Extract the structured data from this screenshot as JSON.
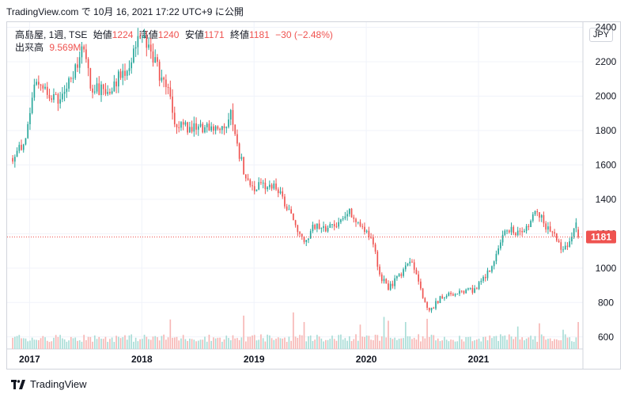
{
  "header": {
    "text": "TradingView.com で 10月 16, 2021 17:22 UTC+9 に公開"
  },
  "legend": {
    "symbol": "高島屋, 1週, TSE",
    "open_label": "始値",
    "open_value": "1224",
    "high_label": "高値",
    "high_value": "1240",
    "low_label": "安値",
    "low_value": "1171",
    "close_label": "終値",
    "close_value": "1181",
    "change": "−30 (−2.48%)",
    "volume_label": "出来高",
    "volume_value": "9.569M"
  },
  "currency": "JPY",
  "last_price_label": "1181",
  "footer": {
    "brand": "TradingView"
  },
  "colors": {
    "up": "#26a69a",
    "down": "#ef5350",
    "up_volume": "#a9ddd7",
    "down_volume": "#f7b7b5",
    "grid": "#f0f3fa",
    "price_line": "#ef5350"
  },
  "chart_data": {
    "type": "candlestick",
    "x_axis": {
      "tick_labels": [
        "2017",
        "2018",
        "2019",
        "2020",
        "2021"
      ],
      "range": [
        "2016-10",
        "2021-11"
      ]
    },
    "y_axis": {
      "tick_labels": [
        "600",
        "800",
        "1000",
        "1200",
        "1400",
        "1600",
        "1800",
        "2000",
        "2200",
        "2400"
      ],
      "range": [
        530,
        2430
      ]
    },
    "grid": true,
    "last_price": 1181,
    "anchors": [
      {
        "x": 2016.85,
        "y": 1640
      },
      {
        "x": 2016.95,
        "y": 1730
      },
      {
        "x": 2017.0,
        "y": 1880
      },
      {
        "x": 2017.06,
        "y": 2110
      },
      {
        "x": 2017.15,
        "y": 2010
      },
      {
        "x": 2017.3,
        "y": 1980
      },
      {
        "x": 2017.48,
        "y": 2280
      },
      {
        "x": 2017.55,
        "y": 2050
      },
      {
        "x": 2017.7,
        "y": 2020
      },
      {
        "x": 2017.82,
        "y": 2140
      },
      {
        "x": 2017.9,
        "y": 2180
      },
      {
        "x": 2017.97,
        "y": 2400
      },
      {
        "x": 2018.05,
        "y": 2320
      },
      {
        "x": 2018.15,
        "y": 2140
      },
      {
        "x": 2018.25,
        "y": 2010
      },
      {
        "x": 2018.3,
        "y": 1840
      },
      {
        "x": 2018.4,
        "y": 1820
      },
      {
        "x": 2018.55,
        "y": 1810
      },
      {
        "x": 2018.7,
        "y": 1800
      },
      {
        "x": 2018.8,
        "y": 1890
      },
      {
        "x": 2018.85,
        "y": 1700
      },
      {
        "x": 2018.95,
        "y": 1480
      },
      {
        "x": 2019.05,
        "y": 1470
      },
      {
        "x": 2019.2,
        "y": 1480
      },
      {
        "x": 2019.3,
        "y": 1350
      },
      {
        "x": 2019.4,
        "y": 1200
      },
      {
        "x": 2019.45,
        "y": 1130
      },
      {
        "x": 2019.52,
        "y": 1250
      },
      {
        "x": 2019.65,
        "y": 1220
      },
      {
        "x": 2019.85,
        "y": 1320
      },
      {
        "x": 2019.95,
        "y": 1260
      },
      {
        "x": 2020.05,
        "y": 1180
      },
      {
        "x": 2020.12,
        "y": 960
      },
      {
        "x": 2020.2,
        "y": 880
      },
      {
        "x": 2020.3,
        "y": 960
      },
      {
        "x": 2020.4,
        "y": 1040
      },
      {
        "x": 2020.48,
        "y": 880
      },
      {
        "x": 2020.55,
        "y": 740
      },
      {
        "x": 2020.65,
        "y": 820
      },
      {
        "x": 2020.8,
        "y": 860
      },
      {
        "x": 2020.95,
        "y": 870
      },
      {
        "x": 2021.05,
        "y": 940
      },
      {
        "x": 2021.15,
        "y": 1050
      },
      {
        "x": 2021.25,
        "y": 1240
      },
      {
        "x": 2021.35,
        "y": 1200
      },
      {
        "x": 2021.45,
        "y": 1250
      },
      {
        "x": 2021.5,
        "y": 1360
      },
      {
        "x": 2021.6,
        "y": 1240
      },
      {
        "x": 2021.7,
        "y": 1160
      },
      {
        "x": 2021.76,
        "y": 1100
      },
      {
        "x": 2021.82,
        "y": 1170
      },
      {
        "x": 2021.86,
        "y": 1260
      },
      {
        "x": 2021.88,
        "y": 1224
      },
      {
        "x": 2021.9,
        "y": 1181
      }
    ],
    "volume_spikes": [
      {
        "x": 2018.26,
        "value": 0.46
      },
      {
        "x": 2018.9,
        "value": 0.52
      },
      {
        "x": 2019.35,
        "value": 0.57
      },
      {
        "x": 2019.45,
        "value": 0.42
      },
      {
        "x": 2019.95,
        "value": 0.38
      },
      {
        "x": 2020.15,
        "value": 0.5
      },
      {
        "x": 2020.2,
        "value": 0.44
      },
      {
        "x": 2020.35,
        "value": 0.42
      },
      {
        "x": 2020.55,
        "value": 0.47
      },
      {
        "x": 2021.35,
        "value": 0.35
      },
      {
        "x": 2021.55,
        "value": 0.4
      },
      {
        "x": 2021.75,
        "value": 0.3
      },
      {
        "x": 2021.88,
        "value": 0.42
      }
    ]
  }
}
